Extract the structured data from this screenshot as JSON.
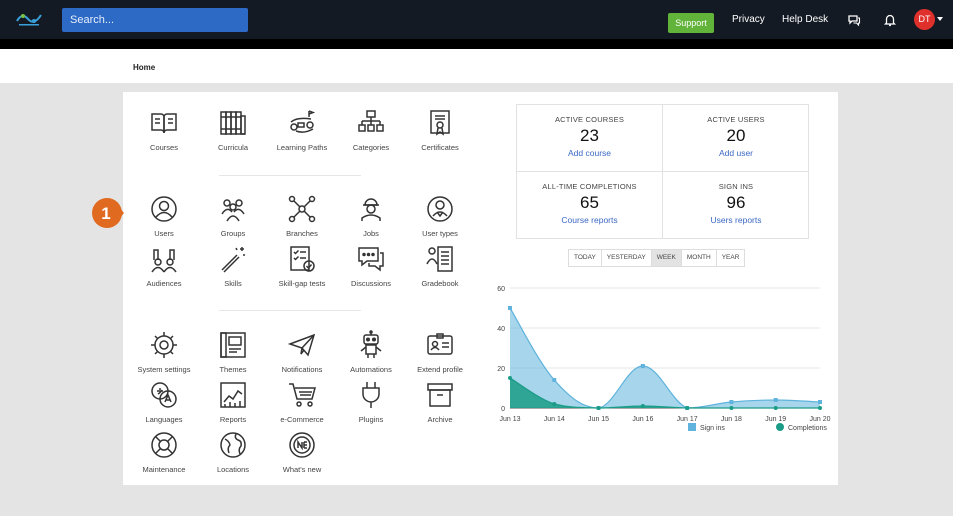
{
  "header": {
    "search_placeholder": "Search...",
    "support": "Support",
    "privacy": "Privacy",
    "helpdesk": "Help Desk",
    "avatar_initials": "DT",
    "icons": [
      "chat-icon",
      "bell-icon"
    ]
  },
  "breadcrumb": "Home",
  "tiles": [
    {
      "label": "Courses",
      "icon": "book-icon"
    },
    {
      "label": "Curricula",
      "icon": "books-icon"
    },
    {
      "label": "Learning Paths",
      "icon": "path-icon"
    },
    {
      "label": "Categories",
      "icon": "categories-icon"
    },
    {
      "label": "Certificates",
      "icon": "certificate-icon"
    },
    {
      "label": "Users",
      "icon": "user-icon"
    },
    {
      "label": "Groups",
      "icon": "groups-icon"
    },
    {
      "label": "Branches",
      "icon": "branches-icon"
    },
    {
      "label": "Jobs",
      "icon": "jobs-icon"
    },
    {
      "label": "User types",
      "icon": "user-types-icon"
    },
    {
      "label": "Audiences",
      "icon": "audiences-icon"
    },
    {
      "label": "Skills",
      "icon": "magic-wand-icon"
    },
    {
      "label": "Skill-gap tests",
      "icon": "checklist-icon"
    },
    {
      "label": "Discussions",
      "icon": "discussions-icon"
    },
    {
      "label": "Gradebook",
      "icon": "gradebook-icon"
    },
    {
      "label": "System settings",
      "icon": "gear-icon"
    },
    {
      "label": "Themes",
      "icon": "themes-icon"
    },
    {
      "label": "Notifications",
      "icon": "paper-plane-icon"
    },
    {
      "label": "Automations",
      "icon": "robot-icon"
    },
    {
      "label": "Extend profile",
      "icon": "id-card-icon"
    },
    {
      "label": "Languages",
      "icon": "languages-icon"
    },
    {
      "label": "Reports",
      "icon": "reports-icon"
    },
    {
      "label": "e-Commerce",
      "icon": "cart-icon"
    },
    {
      "label": "Plugins",
      "icon": "plug-icon"
    },
    {
      "label": "Archive",
      "icon": "archive-icon"
    },
    {
      "label": "Maintenance",
      "icon": "lifebuoy-icon"
    },
    {
      "label": "Locations",
      "icon": "globe-icon"
    },
    {
      "label": "What's new",
      "icon": "whats-new-icon"
    }
  ],
  "callout_number": "1",
  "stats": [
    {
      "title": "ACTIVE COURSES",
      "value": "23",
      "action": "Add course"
    },
    {
      "title": "ACTIVE USERS",
      "value": "20",
      "action": "Add user"
    },
    {
      "title": "ALL-TIME COMPLETIONS",
      "value": "65",
      "action": "Course reports"
    },
    {
      "title": "SIGN INS",
      "value": "96",
      "action": "Users reports"
    }
  ],
  "time_tabs": [
    "TODAY",
    "YESTERDAY",
    "WEEK",
    "MONTH",
    "YEAR"
  ],
  "active_tab": "WEEK",
  "chart_data": {
    "type": "area",
    "x": [
      "Jun 13",
      "Jun 14",
      "Jun 15",
      "Jun 16",
      "Jun 17",
      "Jun 18",
      "Jun 19",
      "Jun 20"
    ],
    "yticks": [
      0,
      20,
      40,
      60
    ],
    "ylim": [
      0,
      60
    ],
    "grid": true,
    "legend_position": "bottom",
    "series": [
      {
        "name": "Sign ins",
        "color": "#5fb3dc",
        "values": [
          50,
          14,
          0,
          21,
          0,
          3,
          4,
          3
        ]
      },
      {
        "name": "Completions",
        "color": "#1a9c86",
        "values": [
          15,
          2,
          0,
          1,
          0,
          0,
          0,
          0
        ]
      }
    ]
  }
}
